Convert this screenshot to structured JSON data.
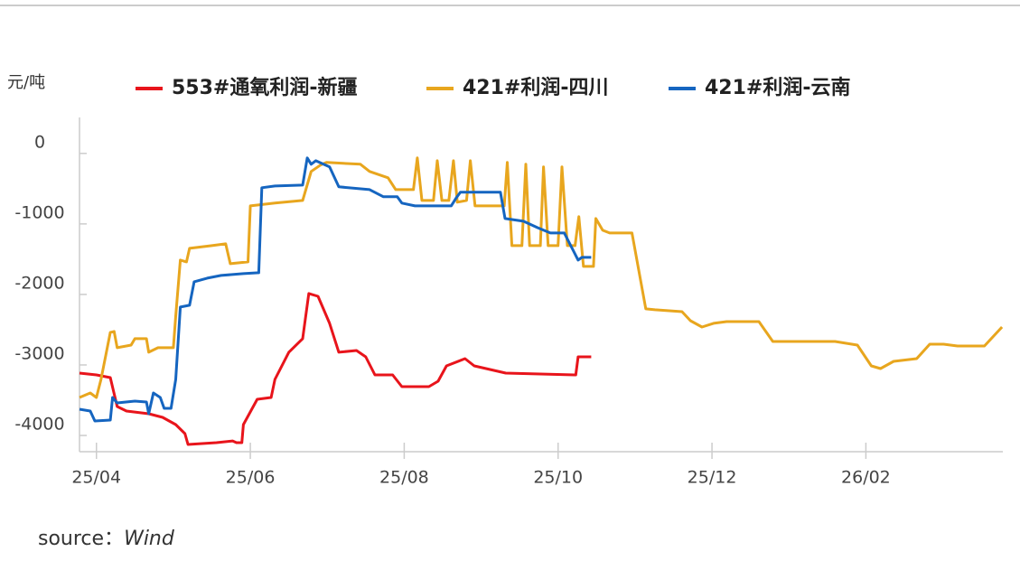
{
  "chart_data": {
    "type": "line",
    "y_unit": "元/吨",
    "source_label": "source：",
    "source": "Wind",
    "xlim": [
      -0.22,
      11.78
    ],
    "xticks": [
      {
        "value": 0,
        "label": "25/04"
      },
      {
        "value": 2,
        "label": "25/06"
      },
      {
        "value": 4,
        "label": "25/08"
      },
      {
        "value": 6,
        "label": "25/10"
      },
      {
        "value": 8,
        "label": "25/12"
      },
      {
        "value": 10,
        "label": "26/02"
      }
    ],
    "ylim": [
      -4230,
      510
    ],
    "yticks": [
      0,
      -1000,
      -2000,
      -3000,
      -4000
    ],
    "series": [
      {
        "name": "553#通氧利润-新疆",
        "color": "#e8141b",
        "x": [
          -0.22,
          0,
          0.18,
          0.27,
          0.39,
          0.68,
          0.86,
          1.03,
          1.15,
          1.19,
          1.56,
          1.77,
          1.82,
          1.89,
          1.91,
          2.09,
          2.27,
          2.32,
          2.5,
          2.68,
          2.76,
          2.88,
          3.03,
          3.15,
          3.38,
          3.5,
          3.62,
          3.85,
          3.97,
          4.32,
          4.44,
          4.55,
          4.79,
          4.91,
          5.32,
          6.23,
          6.26,
          6.43
        ],
        "values": [
          -3115,
          -3141,
          -3179,
          -3590,
          -3654,
          -3692,
          -3743,
          -3846,
          -3974,
          -4128,
          -4102,
          -4077,
          -4102,
          -4102,
          -3846,
          -3487,
          -3461,
          -3205,
          -2820,
          -2628,
          -1987,
          -2026,
          -2410,
          -2820,
          -2795,
          -2885,
          -3141,
          -3141,
          -3308,
          -3308,
          -3231,
          -3013,
          -2910,
          -3013,
          -3115,
          -3141,
          -2885,
          -2885
        ]
      },
      {
        "name": "421#利润-四川",
        "color": "#e8a61e",
        "x": [
          -0.22,
          -0.08,
          0,
          0.06,
          0.18,
          0.23,
          0.27,
          0.45,
          0.5,
          0.65,
          0.68,
          0.8,
          0.86,
          1.0,
          1.03,
          1.09,
          1.17,
          1.21,
          1.5,
          1.68,
          1.74,
          1.97,
          2.0,
          2.32,
          2.68,
          2.79,
          2.91,
          2.99,
          3.43,
          3.55,
          3.79,
          3.89,
          4.12,
          4.17,
          4.23,
          4.38,
          4.43,
          4.49,
          4.58,
          4.64,
          4.69,
          4.81,
          4.86,
          4.92,
          5.3,
          5.34,
          5.4,
          5.53,
          5.58,
          5.63,
          5.77,
          5.81,
          5.87,
          6.0,
          6.05,
          6.12,
          6.22,
          6.27,
          6.33,
          6.46,
          6.49,
          6.58,
          6.67,
          6.96,
          7.14,
          7.26,
          7.61,
          7.72,
          7.87,
          8.02,
          8.19,
          8.61,
          8.79,
          9.6,
          9.89,
          10.07,
          10.19,
          10.36,
          10.66,
          10.83,
          11.01,
          11.19,
          11.54,
          11.77
        ],
        "values": [
          -3461,
          -3397,
          -3461,
          -3205,
          -2538,
          -2525,
          -2756,
          -2718,
          -2628,
          -2628,
          -2820,
          -2756,
          -2756,
          -2756,
          -2308,
          -1513,
          -1538,
          -1346,
          -1308,
          -1282,
          -1564,
          -1538,
          -744,
          -705,
          -667,
          -256,
          -167,
          -128,
          -154,
          -256,
          -346,
          -513,
          -513,
          -64,
          -667,
          -667,
          -103,
          -667,
          -667,
          -103,
          -692,
          -667,
          -103,
          -744,
          -744,
          -128,
          -1308,
          -1308,
          -154,
          -1308,
          -1308,
          -192,
          -1308,
          -1308,
          -192,
          -1308,
          -1308,
          -897,
          -1603,
          -1603,
          -923,
          -1090,
          -1128,
          -1128,
          -2205,
          -2218,
          -2244,
          -2372,
          -2462,
          -2410,
          -2385,
          -2385,
          -2667,
          -2667,
          -2718,
          -3013,
          -3051,
          -2949,
          -2910,
          -2705,
          -2705,
          -2731,
          -2731,
          -2462
        ]
      },
      {
        "name": "421#利润-云南",
        "color": "#1565c0",
        "x": [
          -0.22,
          -0.08,
          -0.02,
          0.18,
          0.21,
          0.27,
          0.5,
          0.65,
          0.68,
          0.74,
          0.83,
          0.88,
          0.97,
          1.03,
          1.09,
          1.21,
          1.27,
          1.44,
          1.62,
          1.91,
          2.11,
          2.15,
          2.32,
          2.68,
          2.74,
          2.79,
          2.85,
          3.03,
          3.15,
          3.55,
          3.73,
          3.91,
          3.97,
          4.14,
          4.61,
          4.67,
          4.73,
          5.25,
          5.31,
          5.55,
          5.73,
          5.9,
          6.08,
          6.26,
          6.31,
          6.43
        ],
        "values": [
          -3628,
          -3654,
          -3795,
          -3782,
          -3461,
          -3538,
          -3513,
          -3526,
          -3692,
          -3397,
          -3461,
          -3615,
          -3615,
          -3205,
          -2179,
          -2154,
          -1820,
          -1769,
          -1731,
          -1705,
          -1692,
          -487,
          -462,
          -449,
          -64,
          -154,
          -103,
          -192,
          -474,
          -513,
          -615,
          -615,
          -705,
          -744,
          -744,
          -641,
          -551,
          -551,
          -923,
          -962,
          -1051,
          -1128,
          -1128,
          -1513,
          -1474,
          -1474
        ]
      }
    ]
  }
}
